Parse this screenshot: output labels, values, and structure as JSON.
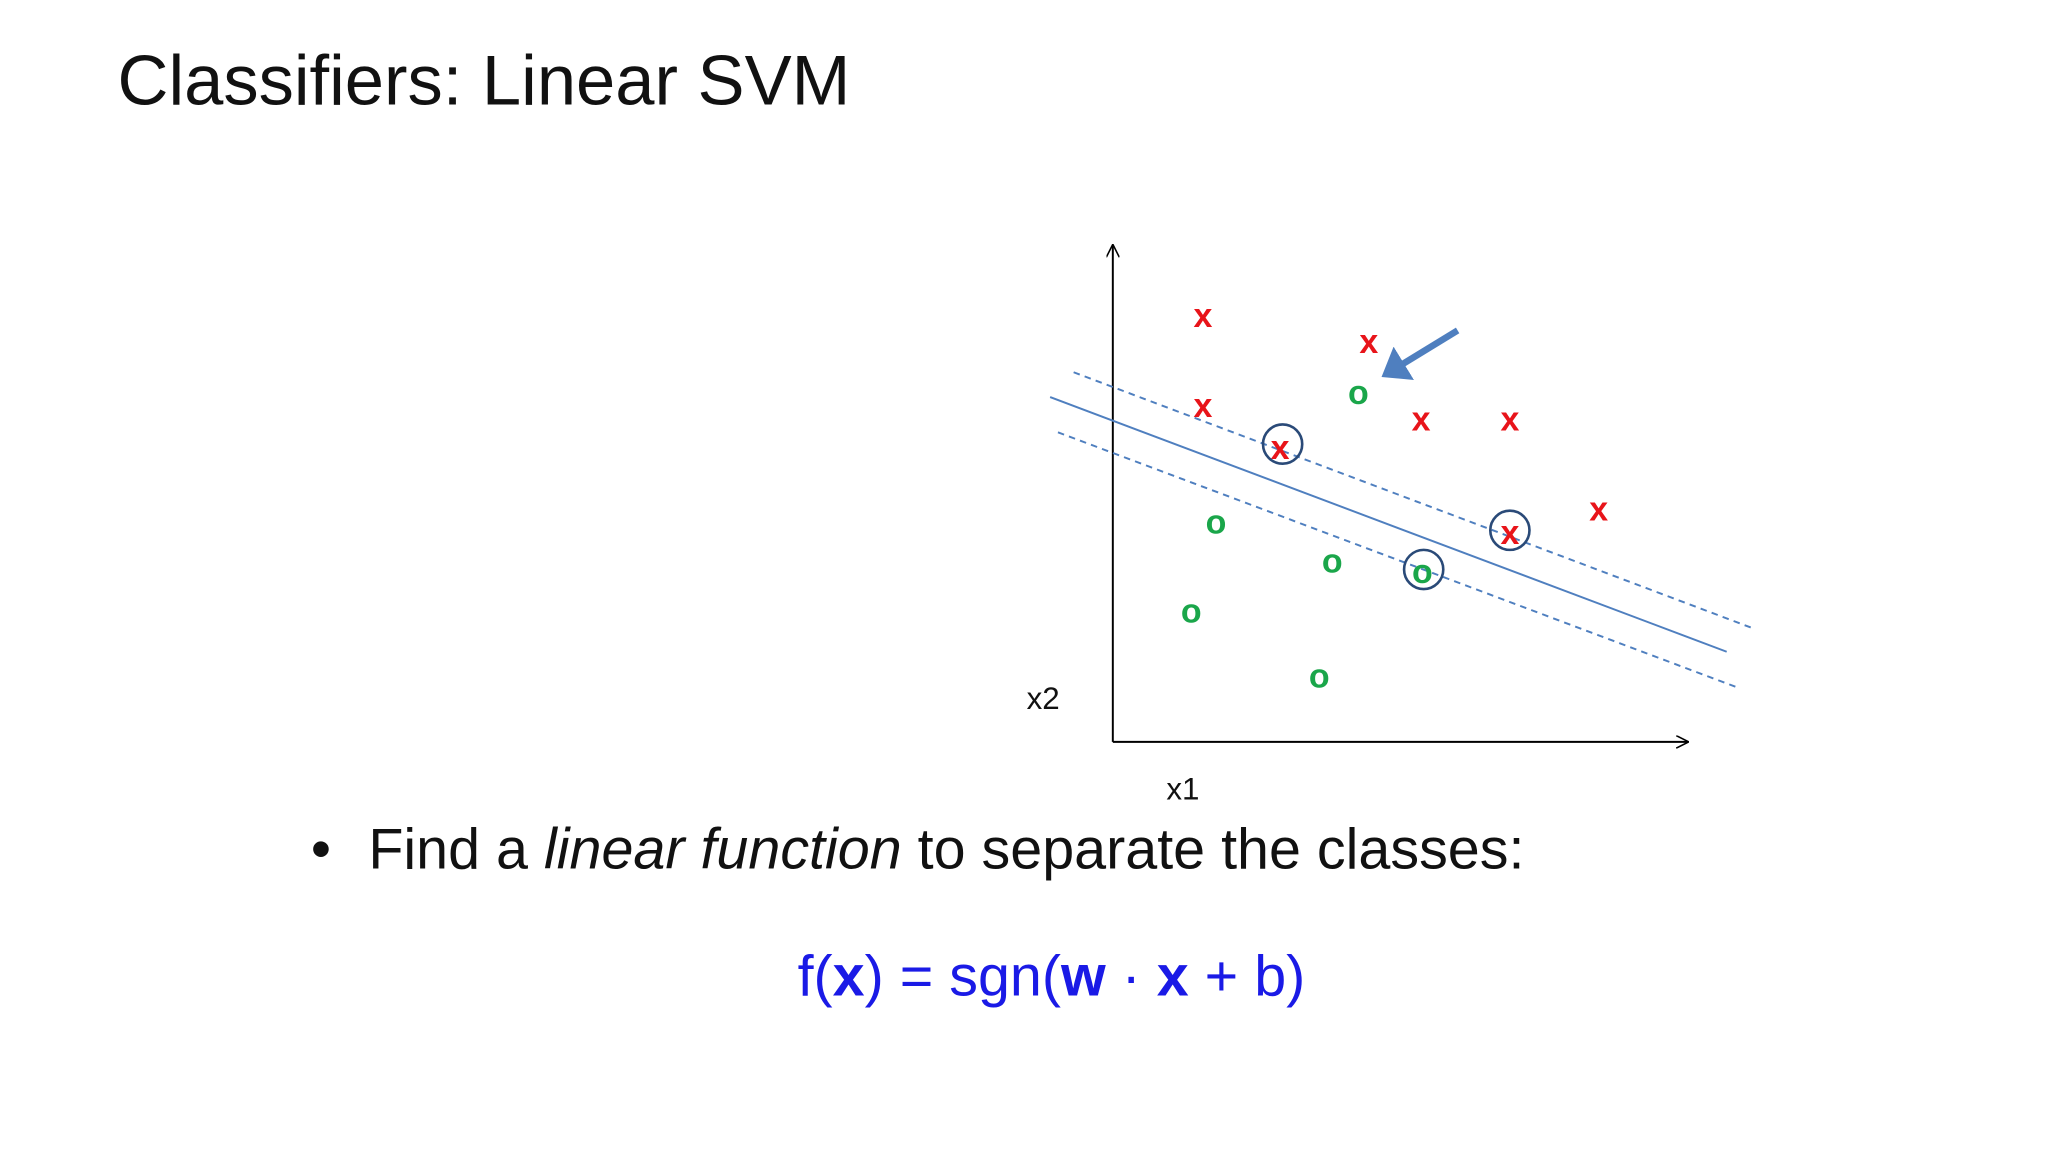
{
  "title": "Classifiers: Linear SVM",
  "plot": {
    "x_axis_label": "x1",
    "y_axis_label": "x2",
    "markers": [
      "x",
      "x",
      "x",
      "x",
      "x",
      "x",
      "x",
      "x",
      "o",
      "o",
      "o",
      "o",
      "o",
      "o"
    ]
  },
  "bullet": {
    "parts": [
      "Find a ",
      "linear function",
      " to separate the classes:"
    ]
  },
  "formula": {
    "parts": [
      "f(",
      "x",
      ") = sgn(",
      "w",
      " · ",
      "x",
      " + b)"
    ]
  }
}
